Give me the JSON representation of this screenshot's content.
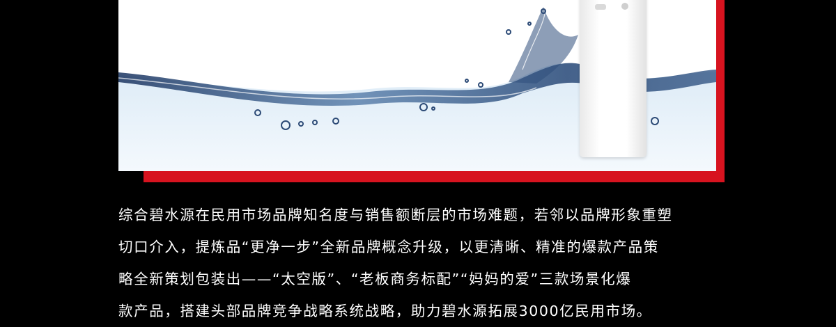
{
  "article": {
    "lines": [
      "综合碧水源在民用市场品牌知名度与销售额断层的市场难题，若邻以品牌形象重塑",
      "切口介入，提炼品“更净一步”全新品牌概念升级，以更清晰、精准的爆款产品策",
      "略全新策划包装出——“太空版”、“老板商务标配”“妈妈的爱”三款场景化爆",
      "款产品，搭建头部品牌竞争战略系统战略，助力碧水源拓展3000亿民用市场。"
    ]
  },
  "colors": {
    "background": "#000000",
    "accent_red": "#d7131f",
    "text": "#ffffff",
    "water_dark": "#1f3c68",
    "water_light": "#cfe3f2"
  }
}
